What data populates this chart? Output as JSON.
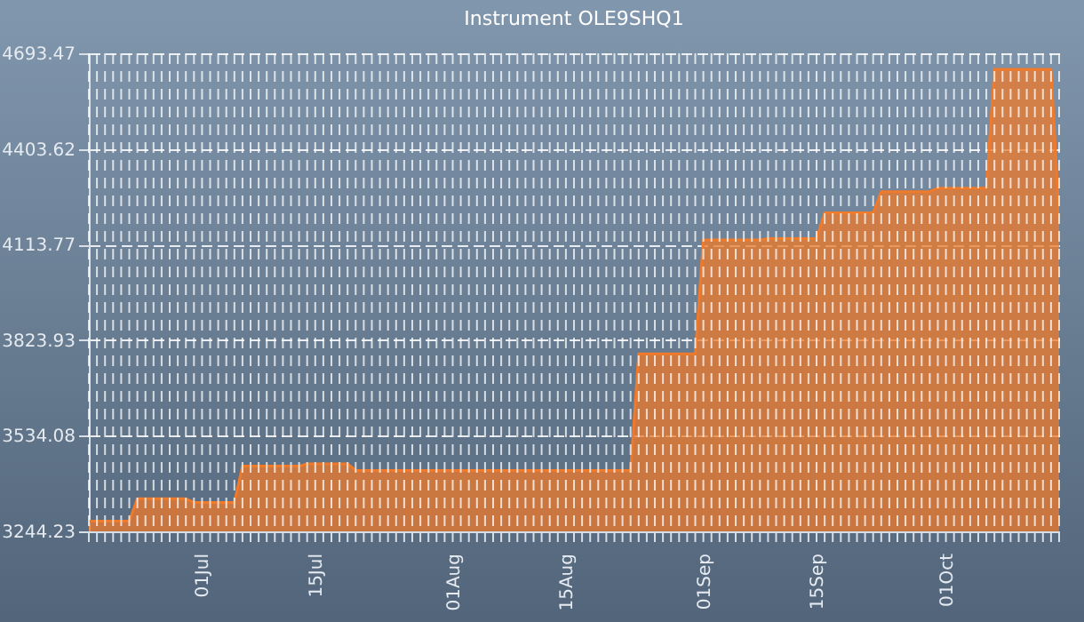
{
  "chart_data": {
    "type": "area",
    "title": "Instrument OLE9SHQ1",
    "x": [
      "--06-17",
      "--06-22",
      "--06-23",
      "--06-29",
      "--06-30",
      "--07-05",
      "--07-06",
      "--07-13",
      "--07-14",
      "--07-19",
      "--07-20",
      "--08-23",
      "--08-24",
      "--08-31",
      "--09-01",
      "--09-08",
      "--09-09",
      "--09-15",
      "--09-16",
      "--09-22",
      "--09-23",
      "--09-29",
      "--09-30",
      "--10-06",
      "--10-07",
      "--10-14",
      "--10-15"
    ],
    "series": [
      {
        "color": "#f07a2a",
        "values": [
          3275,
          3275,
          3343,
          3343,
          3332,
          3332,
          3442,
          3442,
          3449,
          3449,
          3429,
          3429,
          3782,
          3782,
          4128,
          4128,
          4132,
          4132,
          4210,
          4210,
          4274,
          4274,
          4285,
          4285,
          4645,
          4645,
          4195
        ]
      }
    ],
    "xlim": [
      "--06-17",
      "--10-15"
    ],
    "xticks": [
      {
        "value": "--07-01",
        "label": "01Jul"
      },
      {
        "value": "--07-15",
        "label": "15Jul"
      },
      {
        "value": "--08-01",
        "label": "01Aug"
      },
      {
        "value": "--08-15",
        "label": "15Aug"
      },
      {
        "value": "--09-01",
        "label": "01Sep"
      },
      {
        "value": "--09-15",
        "label": "15Sep"
      },
      {
        "value": "--10-01",
        "label": "01Oct"
      }
    ],
    "ylim": [
      3244.23,
      4693.47
    ],
    "yticks": [
      3244.23,
      3534.08,
      3823.93,
      4113.77,
      4403.62,
      4693.47
    ],
    "grid": true,
    "legend": false
  }
}
